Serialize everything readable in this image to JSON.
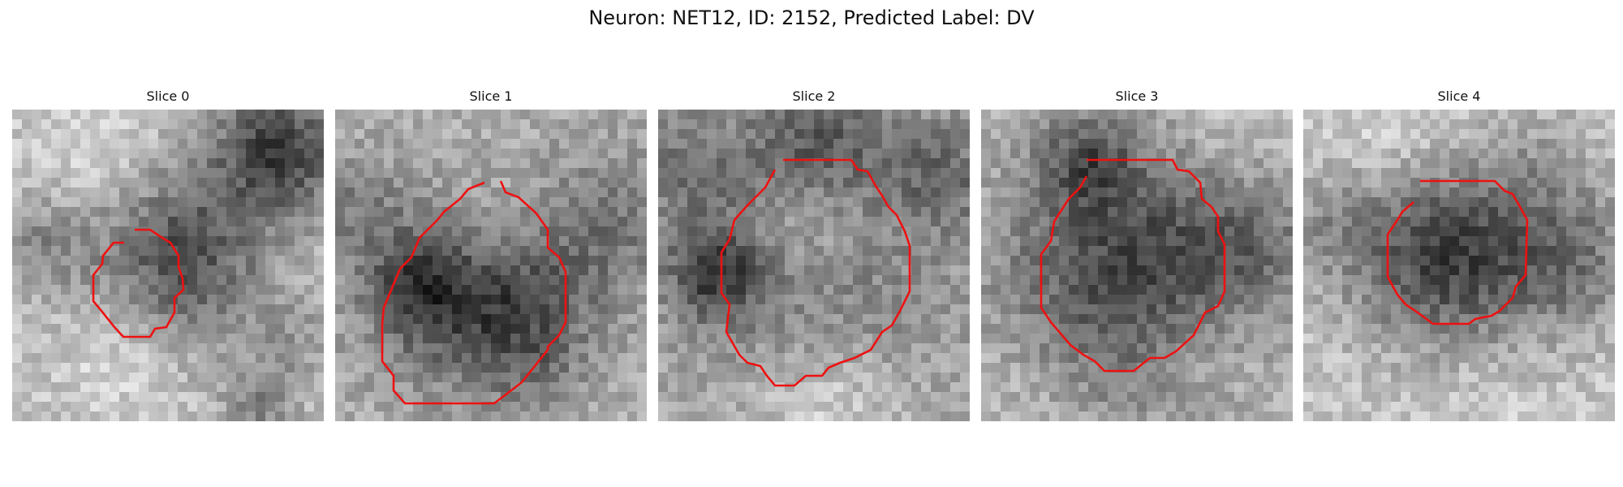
{
  "title": "Neuron: NET12, ID: 2152, Predicted Label: DV",
  "contour_color": "#ee1111",
  "colormap": "gray",
  "slices": [
    {
      "title": "Slice 0"
    },
    {
      "title": "Slice 1"
    },
    {
      "title": "Slice 2"
    },
    {
      "title": "Slice 3"
    },
    {
      "title": "Slice 4"
    }
  ]
}
